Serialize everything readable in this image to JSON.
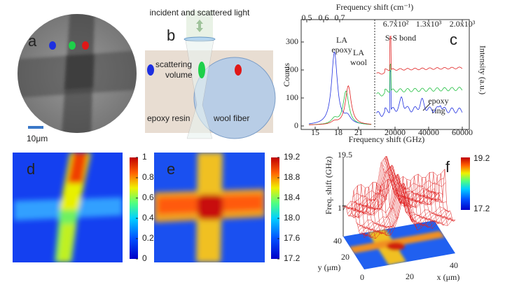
{
  "panel_a": {
    "label": "a",
    "scale_bar": "10μm"
  },
  "panel_b": {
    "label": "b",
    "light": "incident and scattered light",
    "scattering": "scattering",
    "volume": "volume",
    "epoxy": "epoxy resin",
    "wool": "wool fiber"
  },
  "panel_c": {
    "label": "c",
    "top_title": "Frequency shift (cm⁻¹)",
    "bottom_title": "Frequency shift (GHz)",
    "y_title": "Counts",
    "y2_title": "Intensity (a.u.)",
    "top_ticks": [
      "0.5",
      "0.6",
      "0.7",
      "6.7x10²",
      "1.3x10³",
      "2.0x10³"
    ],
    "bottom_ticks": [
      "15",
      "18",
      "21",
      "20000",
      "40000",
      "60000"
    ],
    "y_ticks": [
      "0",
      "100",
      "200",
      "300"
    ],
    "la_epoxy": [
      "LA",
      "epoxy"
    ],
    "la_wool": [
      "LA",
      "wool"
    ],
    "ss_bond": "S-S bond",
    "epoxy_ring": [
      "epoxy",
      "ring"
    ]
  },
  "panel_d": {
    "label": "d",
    "colorbar_ticks": [
      "1",
      "0.8",
      "0.6",
      "0.4",
      "0.2",
      "0"
    ]
  },
  "panel_e": {
    "label": "e",
    "colorbar_ticks": [
      "19.2",
      "18.8",
      "18.4",
      "18.0",
      "17.6",
      "17.2"
    ]
  },
  "panel_f": {
    "label": "f",
    "z_title": "Freq. shift (GHz)",
    "z_ticks": [
      "19.5",
      "17"
    ],
    "colorbar_ticks": [
      "19.2",
      "17.2"
    ],
    "x_title": "x (μm)",
    "y_title": "y (μm)",
    "x_ticks": [
      "0",
      "20",
      "40"
    ],
    "y_ticks": [
      "20",
      "40"
    ]
  }
}
